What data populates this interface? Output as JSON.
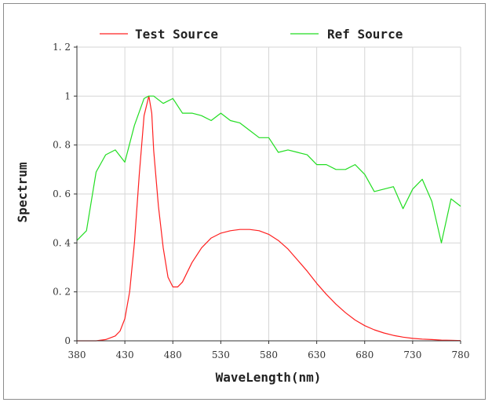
{
  "chart_data": {
    "type": "line",
    "title": "",
    "xlabel": "WaveLength(nm)",
    "ylabel": "Spectrum",
    "xlim": [
      380,
      780
    ],
    "ylim": [
      0,
      1.2
    ],
    "xticks": [
      380,
      430,
      480,
      530,
      580,
      630,
      680,
      730,
      780
    ],
    "yticks": [
      0,
      0.2,
      0.4,
      0.6,
      0.8,
      1,
      1.2
    ],
    "ytick_labels": [
      "0",
      "0. 2",
      "0. 4",
      "0. 6",
      "0. 8",
      "1",
      "1. 2"
    ],
    "grid": true,
    "legend_position": "top",
    "series": [
      {
        "name": "Test Source",
        "color": "#ff2020",
        "x": [
          380,
          400,
          410,
          420,
          425,
          430,
          435,
          440,
          445,
          450,
          455,
          458,
          460,
          465,
          470,
          475,
          480,
          485,
          490,
          495,
          500,
          510,
          520,
          530,
          540,
          550,
          560,
          570,
          580,
          590,
          600,
          610,
          620,
          630,
          640,
          650,
          660,
          670,
          680,
          690,
          700,
          710,
          720,
          730,
          740,
          750,
          760,
          770,
          780
        ],
        "y": [
          0,
          0,
          0.005,
          0.02,
          0.04,
          0.09,
          0.2,
          0.4,
          0.68,
          0.92,
          1.0,
          0.93,
          0.78,
          0.55,
          0.38,
          0.26,
          0.22,
          0.22,
          0.24,
          0.28,
          0.32,
          0.38,
          0.42,
          0.44,
          0.45,
          0.455,
          0.455,
          0.45,
          0.435,
          0.41,
          0.375,
          0.33,
          0.285,
          0.235,
          0.19,
          0.15,
          0.115,
          0.085,
          0.062,
          0.045,
          0.032,
          0.022,
          0.015,
          0.01,
          0.007,
          0.005,
          0.003,
          0.002,
          0.001
        ]
      },
      {
        "name": "Ref Source",
        "color": "#22dd22",
        "x": [
          380,
          390,
          400,
          410,
          420,
          430,
          440,
          450,
          455,
          460,
          470,
          480,
          490,
          500,
          510,
          520,
          530,
          540,
          550,
          560,
          570,
          580,
          590,
          600,
          610,
          620,
          630,
          640,
          650,
          660,
          670,
          680,
          690,
          700,
          710,
          720,
          730,
          740,
          750,
          760,
          770,
          780
        ],
        "y": [
          0.41,
          0.45,
          0.69,
          0.76,
          0.78,
          0.73,
          0.88,
          0.99,
          1.0,
          1.0,
          0.97,
          0.99,
          0.93,
          0.93,
          0.92,
          0.9,
          0.93,
          0.9,
          0.89,
          0.86,
          0.83,
          0.83,
          0.77,
          0.78,
          0.77,
          0.76,
          0.72,
          0.72,
          0.7,
          0.7,
          0.72,
          0.68,
          0.61,
          0.62,
          0.63,
          0.54,
          0.62,
          0.66,
          0.57,
          0.4,
          0.58,
          0.55
        ]
      }
    ]
  }
}
